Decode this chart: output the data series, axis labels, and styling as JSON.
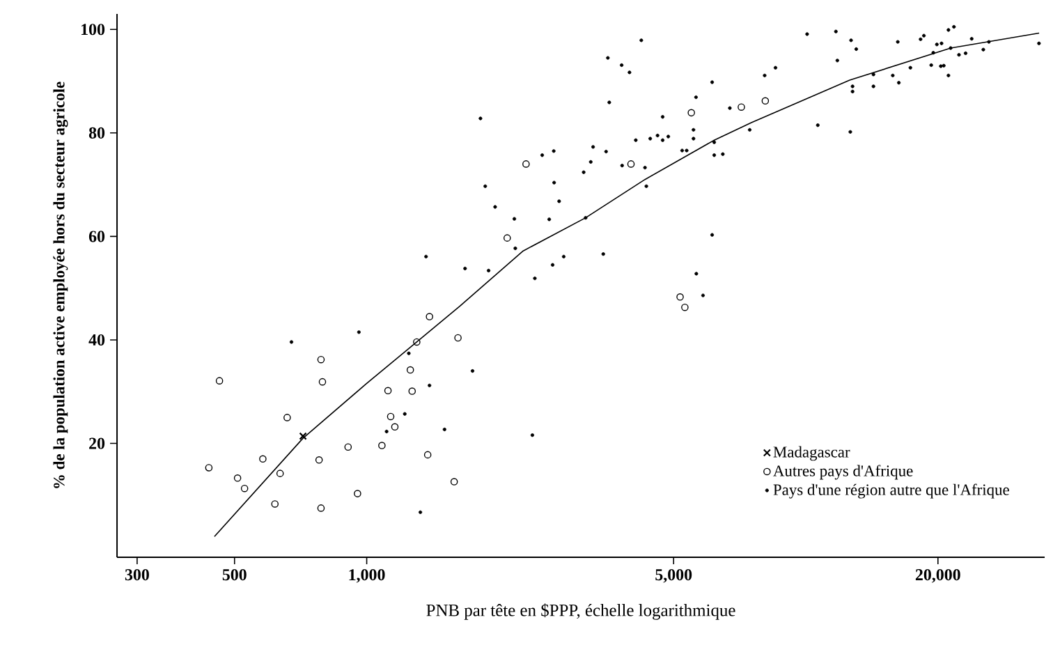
{
  "chart_data": {
    "type": "scatter",
    "xlabel": "PNB par tête en $PPP, échelle logarithmique",
    "ylabel": "% de la population active employée hors du secteur agricole",
    "log": "x",
    "xlim": [
      270,
      35000
    ],
    "ylim": [
      -2,
      103
    ],
    "xticks": [
      300,
      500,
      {
        "value": 1000,
        "label": "1,000"
      },
      {
        "value": 5000,
        "label": "5,000"
      },
      {
        "value": 20000,
        "label": "20,000"
      }
    ],
    "yticks": [
      20,
      40,
      60,
      80,
      100
    ],
    "legend": "bottom right",
    "series": [
      {
        "name": "Madagascar",
        "color": "#000000",
        "marker": "cross",
        "x": [
          716
        ],
        "values": [
          21.4
        ]
      },
      {
        "name": "Autres pays d'Afrique",
        "color": "#000000",
        "marker": "circle",
        "x": [
          437,
          462,
          508,
          527,
          580,
          618,
          635,
          659,
          779,
          787,
          793,
          787,
          907,
          953,
          1083,
          1118,
          1134,
          1159,
          1257,
          1269,
          1300,
          1377,
          1390,
          1582,
          1614,
          2306,
          2089,
          3999,
          5487,
          5173,
          5304,
          7132,
          8087
        ],
        "values": [
          15.3,
          32.1,
          13.3,
          11.3,
          17.0,
          8.3,
          14.2,
          25.0,
          16.8,
          36.2,
          31.9,
          7.5,
          19.3,
          10.3,
          19.6,
          30.2,
          25.2,
          23.2,
          34.2,
          30.1,
          39.6,
          17.8,
          44.5,
          12.6,
          40.4,
          74.0,
          59.7,
          74.0,
          83.9,
          48.3,
          46.3,
          85.0,
          86.2
        ]
      },
      {
        "name": "Pays d'une région autre que l'Afrique",
        "color": "#000000",
        "marker": "star",
        "x": [
          1365,
          1675,
          674,
          960,
          1247,
          1390,
          1221,
          1110,
          1504,
          1325,
          1742,
          1816,
          1862,
          1895,
          1961,
          2169,
          2180,
          2384,
          2415,
          2510,
          2604,
          2651,
          2667,
          2672,
          2743,
          2810,
          3120,
          3152,
          3238,
          3278,
          3458,
          3509,
          3542,
          3568,
          3808,
          3817,
          3968,
          4100,
          4221,
          4303,
          4334,
          4423,
          4596,
          4721,
          4721,
          4862,
          5229,
          5355,
          5550,
          5550,
          5623,
          5633,
          5834,
          6120,
          6120,
          6187,
          6187,
          6472,
          6715,
          7453,
          8060,
          8531,
          10070,
          10650,
          11710,
          11800,
          12630,
          12680,
          12780,
          12780,
          13030,
          14260,
          14260,
          15780,
          16200,
          16290,
          17310,
          18260,
          18580,
          19310,
          19520,
          19890,
          20300,
          20380,
          20620,
          21130,
          21130,
          21380,
          21750,
          22330,
          23120,
          23870,
          25370,
          26120,
          33970
        ],
        "values": [
          56.1,
          53.8,
          39.6,
          41.5,
          37.4,
          31.2,
          25.7,
          22.3,
          22.7,
          6.7,
          34.0,
          82.8,
          69.7,
          53.4,
          65.7,
          63.4,
          57.7,
          21.6,
          51.9,
          75.7,
          63.3,
          54.5,
          76.5,
          70.4,
          66.8,
          56.1,
          72.4,
          63.6,
          74.4,
          77.3,
          56.6,
          76.4,
          94.5,
          85.9,
          93.1,
          73.7,
          91.7,
          78.6,
          97.9,
          73.3,
          69.7,
          78.9,
          79.5,
          83.1,
          78.6,
          79.3,
          76.6,
          76.6,
          80.6,
          78.9,
          86.9,
          52.8,
          48.6,
          60.3,
          89.8,
          78.2,
          75.7,
          75.9,
          84.8,
          80.6,
          91.1,
          92.6,
          99.1,
          81.5,
          99.6,
          94.0,
          80.2,
          97.9,
          89.0,
          88.0,
          96.2,
          91.3,
          89.0,
          91.1,
          97.6,
          89.7,
          92.6,
          98.1,
          98.8,
          93.1,
          95.5,
          97.1,
          92.9,
          97.3,
          93.0,
          91.1,
          99.9,
          96.4,
          100.5,
          95.1,
          95.4,
          98.2,
          96.1,
          97.6,
          97.3
        ]
      },
      {
        "type": "line",
        "color": "#000000",
        "marker": "none",
        "x": [
          450,
          716,
          1000,
          1300,
          1629,
          2272,
          3152,
          4303,
          6187,
          7519,
          12590,
          21380,
          34000
        ],
        "values": [
          2.0,
          21.0,
          31.6,
          39.6,
          46.5,
          57.2,
          63.6,
          71.0,
          78.6,
          82.0,
          90.2,
          96.4,
          99.3
        ]
      }
    ]
  }
}
